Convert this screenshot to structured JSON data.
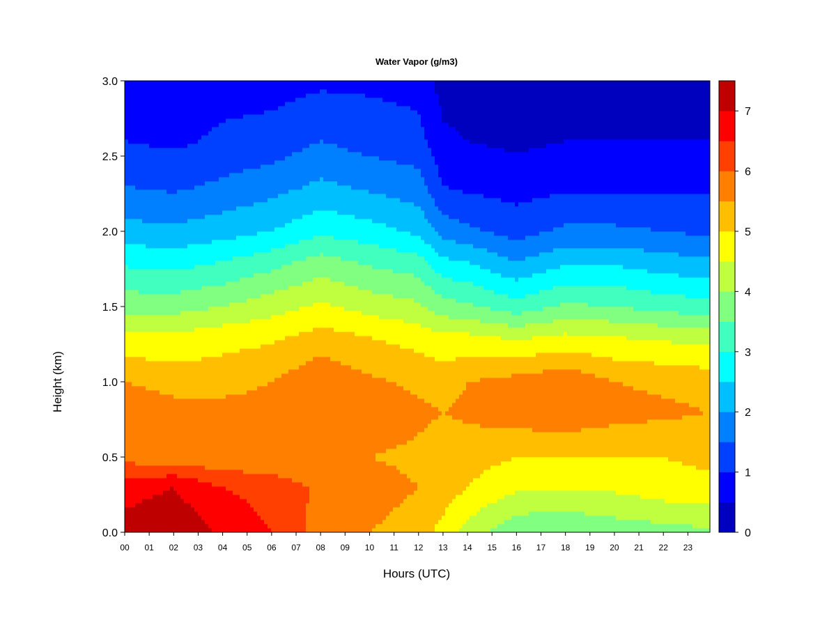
{
  "chart_data": {
    "type": "heatmap",
    "title": "Water Vapor (g/m3)",
    "xlabel": "Hours (UTC)",
    "ylabel": "Height (km)",
    "xlim": [
      0,
      23.9
    ],
    "ylim": [
      0,
      3.0
    ],
    "x_ticks": [
      0,
      1,
      2,
      3,
      4,
      5,
      6,
      7,
      8,
      9,
      10,
      11,
      12,
      13,
      14,
      15,
      16,
      17,
      18,
      19,
      20,
      21,
      22,
      23
    ],
    "x_tick_labels": [
      "00",
      "01",
      "02",
      "03",
      "04",
      "05",
      "06",
      "07",
      "08",
      "09",
      "10",
      "11",
      "12",
      "13",
      "14",
      "15",
      "16",
      "17",
      "18",
      "19",
      "20",
      "21",
      "22",
      "23"
    ],
    "y_ticks": [
      0.0,
      0.5,
      1.0,
      1.5,
      2.0,
      2.5,
      3.0
    ],
    "y_tick_labels": [
      "0.0",
      "0.5",
      "1.0",
      "1.5",
      "2.0",
      "2.5",
      "3.0"
    ],
    "colorbar": {
      "levels": [
        0,
        0.5,
        1,
        1.5,
        2,
        2.5,
        3,
        3.5,
        4,
        4.5,
        5,
        5.5,
        6,
        6.5,
        7,
        7.5
      ],
      "colors": [
        "#00007f",
        "#0000bf",
        "#0000ff",
        "#0040ff",
        "#0080ff",
        "#00bfff",
        "#00ffff",
        "#40ffbf",
        "#80ff80",
        "#bfff40",
        "#ffff00",
        "#ffbf00",
        "#ff8000",
        "#ff4000",
        "#ff0000",
        "#bf0000",
        "#7f0000"
      ],
      "ticks": [
        0,
        1,
        2,
        3,
        4,
        5,
        6,
        7
      ],
      "tick_labels": [
        "0",
        "1",
        "2",
        "3",
        "4",
        "5",
        "6",
        "7"
      ]
    },
    "profiles_hours": [
      0,
      2,
      4,
      6,
      8,
      10,
      12,
      13,
      14,
      16,
      18,
      20,
      22,
      23.9
    ],
    "profiles_heights_km": [
      0.0,
      0.3,
      0.5,
      0.8,
      1.0,
      1.3,
      1.5,
      1.8,
      2.0,
      2.3,
      2.6,
      3.0
    ],
    "profiles_values": [
      [
        7.2,
        6.8,
        5.8,
        5.9,
        5.5,
        4.6,
        3.8,
        2.9,
        2.2,
        1.5,
        1.0,
        0.8
      ],
      [
        7.4,
        7.0,
        5.7,
        5.7,
        5.3,
        4.6,
        3.8,
        2.8,
        2.1,
        1.4,
        0.9,
        0.7
      ],
      [
        6.9,
        6.5,
        5.6,
        5.7,
        5.3,
        4.8,
        4.0,
        3.0,
        2.3,
        1.6,
        1.1,
        0.8
      ],
      [
        6.5,
        6.3,
        5.6,
        5.7,
        5.5,
        4.9,
        4.3,
        3.3,
        2.5,
        1.8,
        1.2,
        0.8
      ],
      [
        5.8,
        5.9,
        5.5,
        6.0,
        5.9,
        5.2,
        4.6,
        3.7,
        2.9,
        2.1,
        1.5,
        0.9
      ],
      [
        5.5,
        5.7,
        5.5,
        5.8,
        5.6,
        5.0,
        4.3,
        3.4,
        2.7,
        1.9,
        1.3,
        0.9
      ],
      [
        5.3,
        5.5,
        5.4,
        5.6,
        5.4,
        4.8,
        4.1,
        3.2,
        2.4,
        1.7,
        1.2,
        0.8
      ],
      [
        4.8,
        5.3,
        5.3,
        5.5,
        5.3,
        4.6,
        3.7,
        2.6,
        1.8,
        1.0,
        0.6,
        0.3
      ],
      [
        4.3,
        5.0,
        5.2,
        5.6,
        5.5,
        4.6,
        3.6,
        2.5,
        1.6,
        0.9,
        0.5,
        0.3
      ],
      [
        3.6,
        4.6,
        5.0,
        5.8,
        5.7,
        4.4,
        3.2,
        2.0,
        1.3,
        0.8,
        0.4,
        0.3
      ],
      [
        3.5,
        4.6,
        5.0,
        5.9,
        5.9,
        4.6,
        3.6,
        2.4,
        1.6,
        0.9,
        0.5,
        0.3
      ],
      [
        3.7,
        4.6,
        5.0,
        5.7,
        5.5,
        4.5,
        3.5,
        2.4,
        1.6,
        0.9,
        0.5,
        0.3
      ],
      [
        3.8,
        4.8,
        5.0,
        5.6,
        5.4,
        4.4,
        3.3,
        2.2,
        1.5,
        0.9,
        0.5,
        0.3
      ],
      [
        3.9,
        4.9,
        5.1,
        5.5,
        5.3,
        4.3,
        3.2,
        2.1,
        1.4,
        0.9,
        0.5,
        0.3
      ]
    ]
  }
}
